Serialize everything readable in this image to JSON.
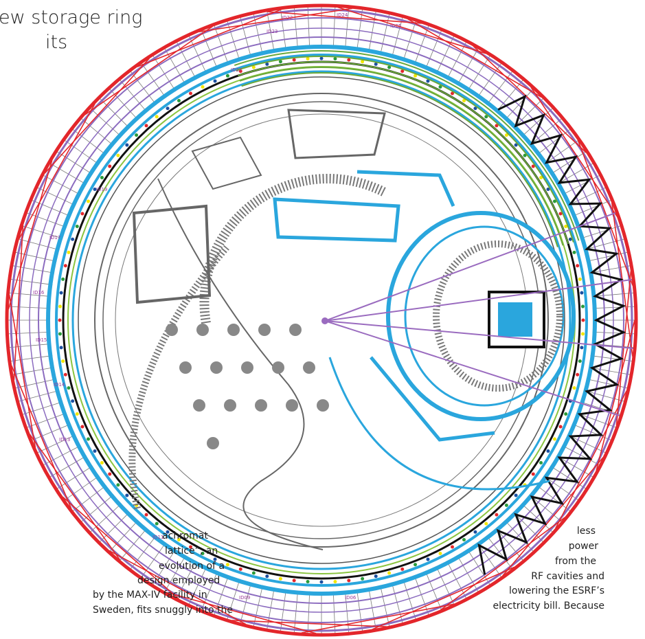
{
  "heading": {
    "lines": [
      "ew storage ring",
      "its"
    ]
  },
  "left_column": {
    "lines": [
      "achromat",
      "lattice”, an",
      "evolution of a",
      "design employed",
      "by the MAX-IV facility in",
      "Sweden, fits snuggly into the"
    ]
  },
  "right_column": {
    "lines": [
      "less",
      "power",
      "from the",
      "RF cavities and",
      "lowering the ESRF’s",
      "electricity bill. Because"
    ]
  },
  "plan": {
    "labels": [
      "ID22",
      "ID23",
      "ID24",
      "ID25",
      "ID27",
      "ID19",
      "ID17",
      "ID16",
      "ID15",
      "ID14",
      "ID13",
      "ID11",
      "ID09",
      "ID06"
    ]
  }
}
